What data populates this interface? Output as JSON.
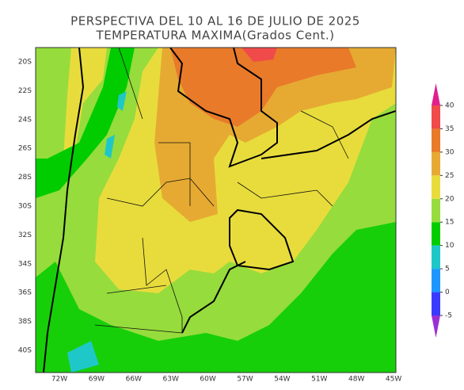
{
  "header": {
    "title": "PERSPECTIVA DEL 10 AL 16 DE JULIO DE 2025",
    "subtitle": "TEMPERATURA MAXIMA(Grados Cent.)"
  },
  "map": {
    "lat_labels": [
      "20S",
      "22S",
      "24S",
      "26S",
      "28S",
      "30S",
      "32S",
      "34S",
      "36S",
      "38S",
      "40S"
    ],
    "lon_labels": [
      "72W",
      "69W",
      "66W",
      "63W",
      "60W",
      "57W",
      "54W",
      "51W",
      "48W",
      "45W"
    ]
  },
  "colorbar": {
    "ticks": [
      -5,
      0,
      5,
      10,
      15,
      20,
      25,
      30,
      35,
      40
    ],
    "colors": [
      "#9b2fd6",
      "#3a3aff",
      "#1e96ff",
      "#1ec8c8",
      "#00cc00",
      "#96dc3c",
      "#e8dc3c",
      "#e6aa32",
      "#e87a2a",
      "#f04a4a",
      "#e0208c"
    ]
  }
}
